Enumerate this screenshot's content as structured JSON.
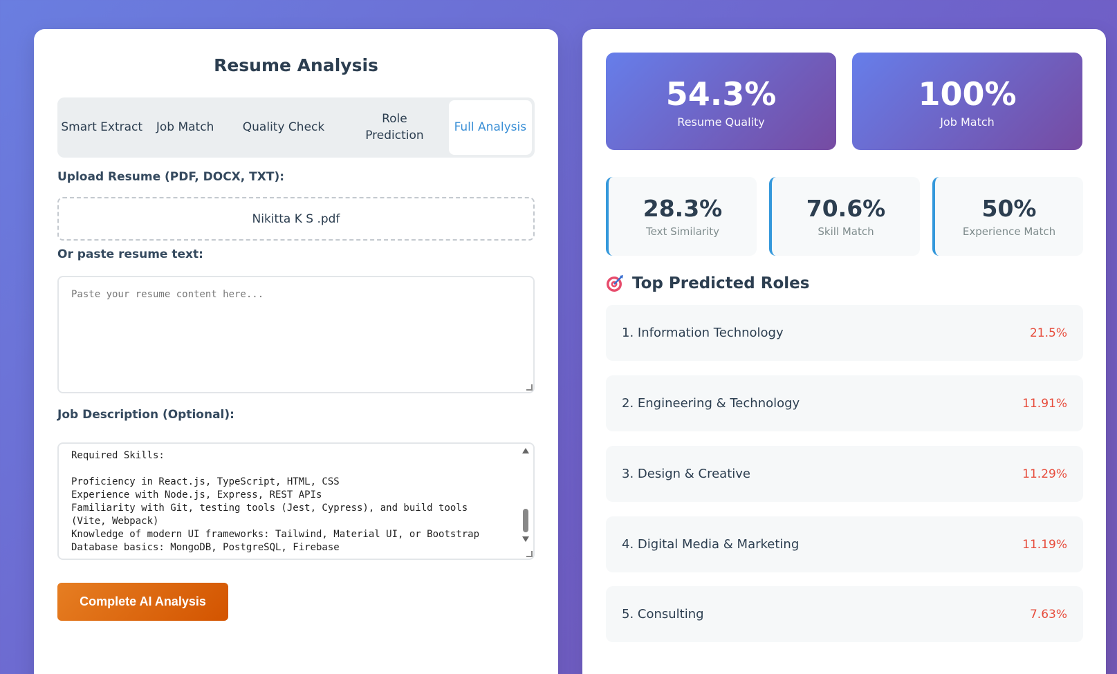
{
  "left": {
    "title": "Resume Analysis",
    "tabs": [
      {
        "label": "Smart Extract"
      },
      {
        "label": "Job Match"
      },
      {
        "label": "Quality Check"
      },
      {
        "label": "Role Prediction"
      },
      {
        "label": "Full Analysis"
      }
    ],
    "upload_label": "Upload Resume (PDF, DOCX, TXT):",
    "upload_file": "Nikitta K S .pdf",
    "paste_label": "Or paste resume text:",
    "paste_placeholder": "Paste your resume content here...",
    "jd_label": "Job Description (Optional):",
    "jd_text": "Required Skills:\n\nProficiency in React.js, TypeScript, HTML, CSS\nExperience with Node.js, Express, REST APIs\nFamiliarity with Git, testing tools (Jest, Cypress), and build tools\n(Vite, Webpack)\nKnowledge of modern UI frameworks: Tailwind, Material UI, or Bootstrap\nDatabase basics: MongoDB, PostgreSQL, Firebase",
    "cta_label": "Complete AI Analysis"
  },
  "right": {
    "big_stats": [
      {
        "value": "54.3%",
        "label": "Resume Quality"
      },
      {
        "value": "100%",
        "label": "Job Match"
      }
    ],
    "small_stats": [
      {
        "value": "28.3%",
        "label": "Text Similarity"
      },
      {
        "value": "70.6%",
        "label": "Skill Match"
      },
      {
        "value": "50%",
        "label": "Experience Match"
      }
    ],
    "roles_title": "Top Predicted Roles",
    "roles": [
      {
        "name": "1. Information Technology",
        "pct": "21.5%"
      },
      {
        "name": "2. Engineering & Technology",
        "pct": "11.91%"
      },
      {
        "name": "3. Design & Creative",
        "pct": "11.29%"
      },
      {
        "name": "4. Digital Media & Marketing",
        "pct": "11.19%"
      },
      {
        "name": "5. Consulting",
        "pct": "7.63%"
      }
    ]
  },
  "colors": {
    "accent_orange": "#e67e22",
    "gradient_start": "#667eea",
    "gradient_end": "#764ba2",
    "active_tab": "#3a8fd6",
    "percent_red": "#e74c3c"
  }
}
